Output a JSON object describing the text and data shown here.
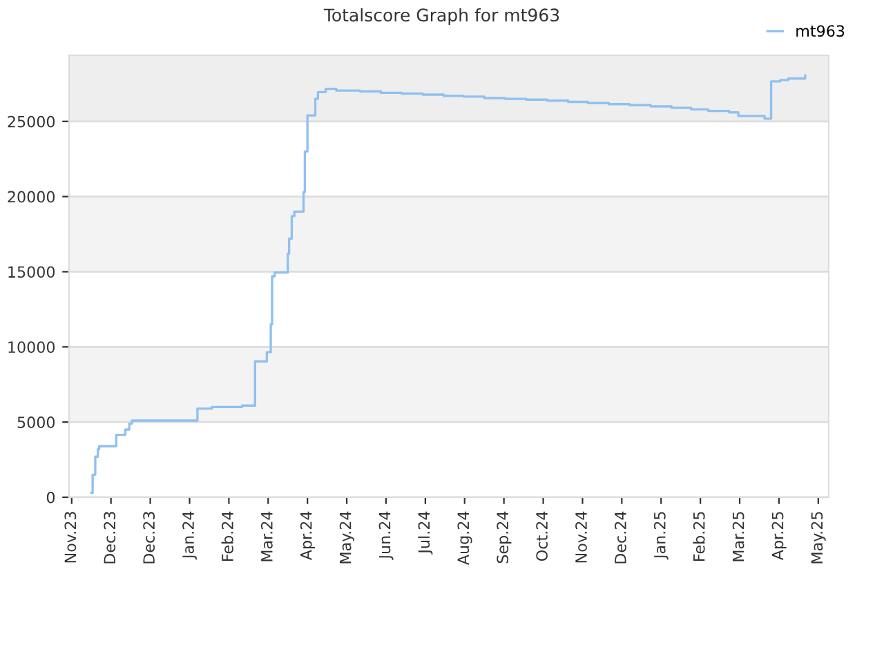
{
  "chart_data": {
    "type": "step",
    "title": "Totalscore Graph for mt963",
    "x": [
      "2023-11-16",
      "2023-11-17",
      "2023-11-19",
      "2023-11-21",
      "2023-11-22",
      "2023-12-05",
      "2023-12-12",
      "2023-12-15",
      "2023-12-17",
      "2024-02-05",
      "2024-02-16",
      "2024-03-10",
      "2024-03-20",
      "2024-03-29",
      "2024-04-01",
      "2024-04-02",
      "2024-04-04",
      "2024-04-14",
      "2024-04-15",
      "2024-04-17",
      "2024-04-19",
      "2024-04-26",
      "2024-04-27",
      "2024-04-29",
      "2024-05-05",
      "2024-05-07",
      "2024-05-13",
      "2024-05-21",
      "2024-06-08",
      "2024-06-24",
      "2024-07-10",
      "2024-07-26",
      "2024-08-11",
      "2024-08-26",
      "2024-09-11",
      "2024-09-27",
      "2024-10-13",
      "2024-10-29",
      "2024-11-14",
      "2024-11-29",
      "2024-12-15",
      "2024-12-31",
      "2025-01-16",
      "2025-02-01",
      "2025-02-16",
      "2025-03-01",
      "2025-03-17",
      "2025-03-24",
      "2025-04-13",
      "2025-04-18",
      "2025-04-25",
      "2025-05-01",
      "2025-05-14"
    ],
    "series": [
      {
        "name": "mt963",
        "color": "#90c0f0",
        "values": [
          300,
          1500,
          2700,
          3200,
          3400,
          4150,
          4500,
          4900,
          5100,
          5900,
          6000,
          6100,
          9040,
          9650,
          11500,
          14700,
          14950,
          16200,
          17200,
          18700,
          19000,
          20300,
          23000,
          25400,
          26500,
          26950,
          27170,
          27050,
          27000,
          26900,
          26850,
          26780,
          26700,
          26650,
          26550,
          26500,
          26450,
          26380,
          26300,
          26220,
          26150,
          26080,
          26000,
          25900,
          25800,
          25700,
          25600,
          25360,
          25180,
          27660,
          27750,
          27850,
          28060
        ]
      }
    ],
    "xlim": [
      "2023-10-30",
      "2025-06-01"
    ],
    "xticks": [
      {
        "value": "2023-11-01",
        "label": "Nov.23"
      },
      {
        "value": "2023-12-01",
        "label": "Dec.23"
      },
      {
        "value": "2023-12-31",
        "label": "Dec.23"
      },
      {
        "value": "2024-01-30",
        "label": "Jan.24"
      },
      {
        "value": "2024-02-29",
        "label": "Feb.24"
      },
      {
        "value": "2024-03-30",
        "label": "Mar.24"
      },
      {
        "value": "2024-04-29",
        "label": "Apr.24"
      },
      {
        "value": "2024-05-29",
        "label": "May.24"
      },
      {
        "value": "2024-06-28",
        "label": "Jun.24"
      },
      {
        "value": "2024-07-28",
        "label": "Jul.24"
      },
      {
        "value": "2024-08-27",
        "label": "Aug.24"
      },
      {
        "value": "2024-09-26",
        "label": "Sep.24"
      },
      {
        "value": "2024-10-26",
        "label": "Oct.24"
      },
      {
        "value": "2024-11-25",
        "label": "Nov.24"
      },
      {
        "value": "2024-12-25",
        "label": "Dec.24"
      },
      {
        "value": "2025-01-24",
        "label": "Jan.25"
      },
      {
        "value": "2025-02-23",
        "label": "Feb.25"
      },
      {
        "value": "2025-03-25",
        "label": "Mar.25"
      },
      {
        "value": "2025-04-24",
        "label": "Apr.25"
      },
      {
        "value": "2025-05-24",
        "label": "May.25"
      }
    ],
    "ylim": [
      0,
      29400
    ],
    "yticks": [
      0,
      5000,
      10000,
      15000,
      20000,
      25000
    ],
    "bands": [
      {
        "axis": "y",
        "from": 5000,
        "to": 10000,
        "color": "#f3f3f3"
      },
      {
        "axis": "y",
        "from": 15000,
        "to": 20000,
        "color": "#f3f3f3"
      },
      {
        "axis": "y",
        "from": 25000,
        "to": 29400,
        "color": "#eeeeee"
      }
    ],
    "grid": "y",
    "legend": "top right",
    "marker": "none",
    "line_style": "solid"
  }
}
